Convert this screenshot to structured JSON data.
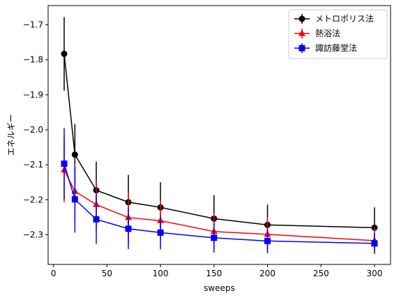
{
  "chart_data": {
    "type": "line",
    "title": "",
    "xlabel": "sweeps",
    "ylabel": "エネルギー",
    "xlim": [
      -5,
      315
    ],
    "ylim": [
      -2.385,
      -1.645
    ],
    "x_ticks": [
      0,
      50,
      100,
      150,
      200,
      250,
      300
    ],
    "y_ticks": [
      -2.3,
      -2.2,
      -2.1,
      -2.0,
      -1.9,
      -1.8,
      -1.7
    ],
    "legend_position": "top-right",
    "grid": false,
    "series": [
      {
        "name": "メトロポリス法",
        "color": "#000000",
        "marker": "circle",
        "x": [
          10,
          20,
          40,
          70,
          100,
          150,
          200,
          300
        ],
        "y": [
          -1.783,
          -2.071,
          -2.173,
          -2.207,
          -2.222,
          -2.254,
          -2.272,
          -2.28
        ],
        "err": [
          0.105,
          0.088,
          0.082,
          0.078,
          0.072,
          0.067,
          0.058,
          0.058
        ]
      },
      {
        "name": "熱浴法",
        "color": "#ff0000",
        "marker": "triangle",
        "x": [
          10,
          20,
          40,
          70,
          100,
          150,
          200,
          300
        ],
        "y": [
          -2.115,
          -2.176,
          -2.214,
          -2.251,
          -2.26,
          -2.291,
          -2.299,
          -2.317
        ],
        "err": [
          0.092,
          0.078,
          0.07,
          0.072,
          0.058,
          0.052,
          0.048,
          0.038
        ]
      },
      {
        "name": "諏訪藤堂法",
        "color": "#0000ff",
        "marker": "square",
        "x": [
          10,
          20,
          40,
          70,
          100,
          150,
          200,
          300
        ],
        "y": [
          -2.097,
          -2.199,
          -2.256,
          -2.283,
          -2.294,
          -2.309,
          -2.318,
          -2.325
        ],
        "err": [
          0.102,
          0.095,
          0.07,
          0.058,
          0.048,
          0.042,
          0.035,
          0.028
        ]
      }
    ]
  }
}
